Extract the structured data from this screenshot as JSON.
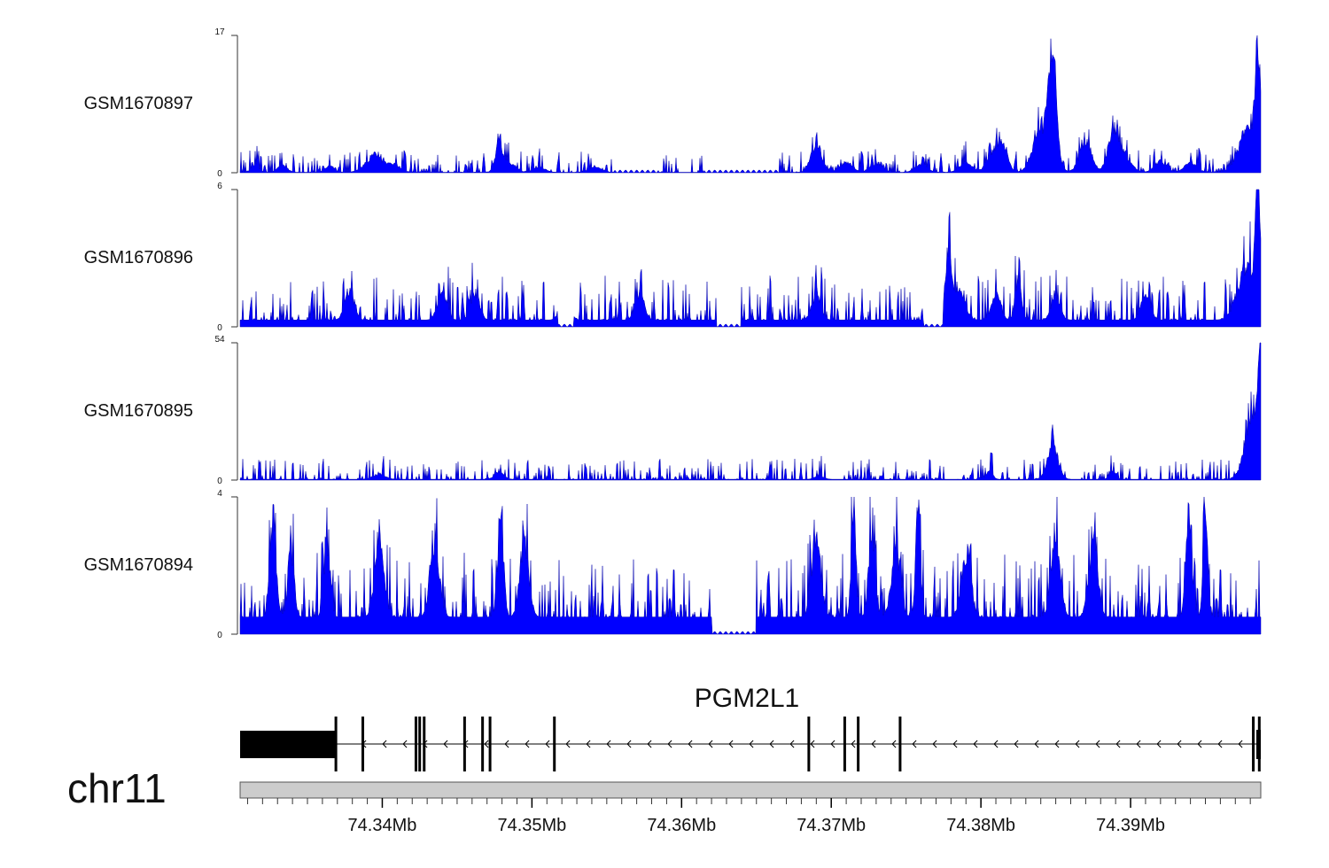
{
  "chart_data": {
    "type": "area",
    "title": "",
    "x_unit": "Mb",
    "xlim": [
      74.3305,
      74.3987
    ],
    "color": "#0000ff",
    "tracks": [
      {
        "name": "GSM1670897",
        "ylim": [
          0,
          17
        ],
        "ymin_label": "0",
        "ymax_label": "17",
        "baseline": 0.05,
        "noise": 0.6,
        "peaks": [
          [
            74.3315,
            1.2,
            0.00025
          ],
          [
            74.3333,
            1.1,
            0.0003
          ],
          [
            74.3365,
            0.9,
            0.0003
          ],
          [
            74.3395,
            2.3,
            0.0006
          ],
          [
            74.3408,
            1.0,
            0.0004
          ],
          [
            74.3478,
            4.0,
            0.00025
          ],
          [
            74.3485,
            1.4,
            0.0004
          ],
          [
            74.3505,
            0.7,
            0.0004
          ],
          [
            74.3542,
            0.8,
            0.0004
          ],
          [
            74.369,
            4.2,
            0.00035
          ],
          [
            74.371,
            1.5,
            0.0004
          ],
          [
            74.373,
            1.3,
            0.0004
          ],
          [
            74.376,
            1.2,
            0.0004
          ],
          [
            74.379,
            1.5,
            0.0004
          ],
          [
            74.3808,
            3.0,
            0.0004
          ],
          [
            74.3815,
            4.0,
            0.0003
          ],
          [
            74.3838,
            2.0,
            0.0004
          ],
          [
            74.3848,
            15.5,
            0.00025
          ],
          [
            74.3842,
            5.0,
            0.0006
          ],
          [
            74.387,
            4.5,
            0.0004
          ],
          [
            74.3888,
            5.0,
            0.00035
          ],
          [
            74.3895,
            2.5,
            0.0005
          ],
          [
            74.392,
            1.6,
            0.0004
          ],
          [
            74.394,
            1.5,
            0.0004
          ],
          [
            74.3985,
            17.0,
            0.00018
          ],
          [
            74.3978,
            6.0,
            0.0006
          ]
        ],
        "gaps": [
          [
            74.3555,
            74.3585
          ],
          [
            74.3615,
            74.3665
          ]
        ]
      },
      {
        "name": "GSM1670896",
        "ylim": [
          0,
          6
        ],
        "ymin_label": "0",
        "ymax_label": "6",
        "baseline": 0.3,
        "noise": 1.3,
        "peaks": [
          [
            74.3378,
            1.6,
            0.0003
          ],
          [
            74.344,
            1.5,
            0.0003
          ],
          [
            74.3462,
            1.4,
            0.0003
          ],
          [
            74.3522,
            1.6,
            0.0003
          ],
          [
            74.3572,
            1.4,
            0.0003
          ],
          [
            74.369,
            1.3,
            0.0003
          ],
          [
            74.3778,
            3.3,
            0.0002
          ],
          [
            74.3785,
            1.6,
            0.0004
          ],
          [
            74.381,
            1.4,
            0.0003
          ],
          [
            74.3825,
            2.3,
            0.0002
          ],
          [
            74.385,
            1.2,
            0.0003
          ],
          [
            74.391,
            1.3,
            0.0003
          ],
          [
            74.3985,
            6.0,
            0.00015
          ],
          [
            74.3978,
            3.0,
            0.0006
          ]
        ],
        "gaps": [
          [
            74.3517,
            74.3528
          ],
          [
            74.3623,
            74.364
          ],
          [
            74.3762,
            74.3775
          ]
        ]
      },
      {
        "name": "GSM1670895",
        "ylim": [
          0,
          54
        ],
        "ymin_label": "0",
        "ymax_label": "54",
        "baseline": 0.3,
        "noise": 0.6,
        "peaks": [
          [
            74.3398,
            2.5,
            0.0004
          ],
          [
            74.3478,
            3.5,
            0.0003
          ],
          [
            74.3692,
            1.5,
            0.0003
          ],
          [
            74.3806,
            4.0,
            0.0002
          ],
          [
            74.3848,
            16.0,
            0.00035
          ],
          [
            74.3888,
            4.0,
            0.0002
          ],
          [
            74.3982,
            35.0,
            0.0005
          ],
          [
            74.3987,
            53.0,
            0.00015
          ]
        ],
        "gaps": []
      },
      {
        "name": "GSM1670894",
        "ylim": [
          0,
          4
        ],
        "ymin_label": "0",
        "ymax_label": "4",
        "baseline": 0.5,
        "noise": 1.9,
        "peaks": [
          [
            74.3327,
            3.4,
            0.0002
          ],
          [
            74.3339,
            2.5,
            0.0002
          ],
          [
            74.3363,
            2.8,
            0.0002
          ],
          [
            74.3398,
            2.8,
            0.0003
          ],
          [
            74.3435,
            2.8,
            0.0003
          ],
          [
            74.3479,
            3.4,
            0.0002
          ],
          [
            74.3495,
            2.6,
            0.0003
          ],
          [
            74.369,
            2.8,
            0.0003
          ],
          [
            74.3715,
            4.0,
            0.00015
          ],
          [
            74.3727,
            3.2,
            0.0002
          ],
          [
            74.3743,
            2.2,
            0.0003
          ],
          [
            74.3758,
            4.0,
            0.00015
          ],
          [
            74.379,
            2.3,
            0.0003
          ],
          [
            74.385,
            2.8,
            0.0003
          ],
          [
            74.3875,
            2.6,
            0.0003
          ],
          [
            74.3939,
            3.5,
            0.0002
          ],
          [
            74.395,
            4.0,
            0.00015
          ]
        ],
        "gaps": [
          [
            74.362,
            74.365
          ]
        ]
      }
    ],
    "gene": {
      "name": "PGM2L1",
      "chrom": "chr11",
      "strand": "-",
      "start": 74.3305,
      "end": 74.3987,
      "utr": [
        74.3305,
        74.3369
      ],
      "exons": [
        74.3369,
        74.3387,
        74.34225,
        74.3425,
        74.3428,
        74.3455,
        74.3467,
        74.3472,
        74.3515,
        74.3685,
        74.3709,
        74.3718,
        74.3746,
        74.3982,
        74.3986
      ]
    },
    "x_ticks": [
      {
        "value": 74.34,
        "label": "74.34Mb"
      },
      {
        "value": 74.35,
        "label": "74.35Mb"
      },
      {
        "value": 74.36,
        "label": "74.36Mb"
      },
      {
        "value": 74.37,
        "label": "74.37Mb"
      },
      {
        "value": 74.38,
        "label": "74.38Mb"
      },
      {
        "value": 74.39,
        "label": "74.39Mb"
      }
    ],
    "minor_tick_step": 0.001
  }
}
